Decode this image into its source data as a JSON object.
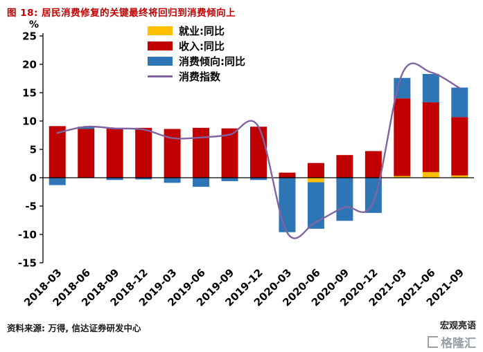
{
  "title": "图 18: 居民消费修复的关键最终将回归到消费倾向上",
  "source": "资料来源: 万得, 信达证券研发中心",
  "watermark": {
    "text": "宏观亮语",
    "logo": "格隆汇"
  },
  "chart_data": {
    "type": "bar",
    "subtype": "stacked-bars-with-smooth-line",
    "title": "图 18: 居民消费修复的关键最终将回归到消费倾向上",
    "ylabel": "%",
    "ylim": [
      -15,
      25
    ],
    "yticks": [
      25,
      20,
      15,
      10,
      5,
      0,
      -5,
      -10,
      -15
    ],
    "grid": false,
    "legend_position": "top-center",
    "categories": [
      "2018-03",
      "2018-06",
      "2018-09",
      "2018-12",
      "2019-03",
      "2019-06",
      "2019-09",
      "2019-12",
      "2020-03",
      "2020-06",
      "2020-09",
      "2020-12",
      "2021-03",
      "2021-06",
      "2021-09"
    ],
    "bar_series": [
      {
        "name": "就业:同比",
        "color": "#FFC000",
        "values": [
          0,
          0,
          0,
          0,
          0,
          0,
          0,
          0,
          0,
          -0.8,
          0,
          0,
          0.3,
          1.0,
          0.4
        ]
      },
      {
        "name": "收入:同比",
        "color": "#C00000",
        "values": [
          9.1,
          8.6,
          8.8,
          8.8,
          8.6,
          8.8,
          8.7,
          9.0,
          0.9,
          2.6,
          4.0,
          4.7,
          13.7,
          12.3,
          10.3
        ]
      },
      {
        "name": "消费倾向:同比",
        "color": "#2E75B6",
        "values": [
          -1.3,
          0.4,
          -0.4,
          -0.3,
          -0.9,
          -1.6,
          -0.6,
          -0.4,
          -9.6,
          -8.2,
          -7.6,
          -6.2,
          3.6,
          5.0,
          5.2
        ]
      }
    ],
    "line_series": {
      "name": "消费指数",
      "color": "#8064A2",
      "values": [
        7.9,
        9.0,
        8.7,
        8.5,
        7.0,
        7.1,
        7.6,
        9.0,
        -9.7,
        -7.8,
        -5.2,
        -4.2,
        18.3,
        18.6,
        15.8
      ]
    }
  }
}
